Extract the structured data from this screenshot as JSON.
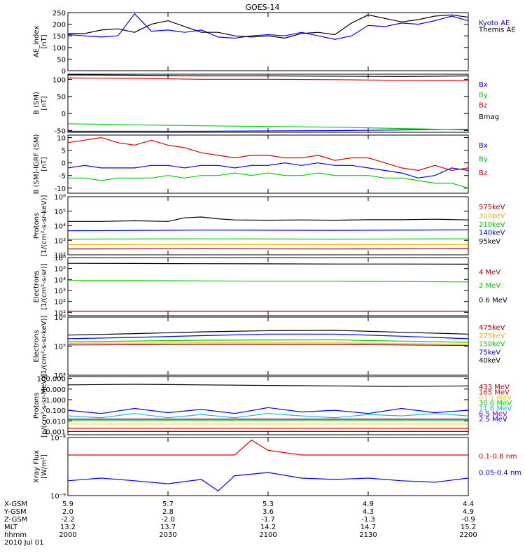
{
  "title": "GOES-14",
  "chart_data": [
    {
      "type": "line",
      "ylabel": [
        "AE_index",
        "[nT]"
      ],
      "scale": "linear",
      "ylim": [
        0,
        250
      ],
      "ticks": [
        0,
        50,
        100,
        150,
        200,
        250
      ],
      "tick_labels": [
        "0",
        "50",
        "100",
        "150",
        "200",
        "250"
      ],
      "series": [
        {
          "name": "Kyoto AE",
          "color": "#0000ff",
          "label_at": 0.0,
          "x": [
            0,
            5,
            10,
            15,
            20,
            25,
            30,
            35,
            40,
            45,
            50,
            55,
            60,
            65,
            70,
            75,
            80,
            85,
            90,
            95,
            100,
            105,
            110,
            115,
            120
          ],
          "y": [
            155,
            150,
            145,
            150,
            245,
            170,
            175,
            165,
            175,
            145,
            140,
            150,
            155,
            150,
            165,
            150,
            135,
            150,
            195,
            190,
            205,
            200,
            215,
            235,
            215
          ]
        },
        {
          "name": "Themis AE",
          "color": "#000000",
          "label_at": 0.16,
          "x": [
            0,
            5,
            10,
            15,
            20,
            25,
            30,
            35,
            40,
            45,
            50,
            55,
            60,
            65,
            70,
            75,
            80,
            85,
            90,
            95,
            100,
            105,
            110,
            115,
            120
          ],
          "y": [
            160,
            160,
            175,
            180,
            165,
            200,
            215,
            190,
            165,
            165,
            150,
            145,
            150,
            140,
            160,
            165,
            155,
            205,
            240,
            225,
            210,
            220,
            235,
            240,
            230
          ]
        }
      ]
    },
    {
      "type": "line",
      "ylabel": [
        "B (SM)",
        "[nT]"
      ],
      "scale": "linear",
      "ylim": [
        -55,
        115
      ],
      "ticks": [
        -50,
        0,
        50,
        100
      ],
      "tick_labels": [
        "-50",
        "0",
        "50",
        "100"
      ],
      "series": [
        {
          "name": "Bx",
          "color": "#0000ff",
          "label_at": 0.0,
          "x": [
            0,
            20,
            40,
            60,
            80,
            100,
            120
          ],
          "y": [
            -52,
            -52,
            -52,
            -51,
            -50,
            -48,
            -46
          ]
        },
        {
          "name": "By",
          "color": "#00d000",
          "label_at": 0.25,
          "x": [
            0,
            20,
            40,
            60,
            80,
            100,
            120
          ],
          "y": [
            -30,
            -33,
            -36,
            -38,
            -40,
            -44,
            -48
          ]
        },
        {
          "name": "Bz",
          "color": "#e00000",
          "label_at": 0.5,
          "x": [
            0,
            20,
            40,
            60,
            80,
            100,
            120
          ],
          "y": [
            104,
            103,
            100,
            100,
            99,
            97,
            96
          ]
        },
        {
          "name": "Bmag",
          "color": "#000000",
          "label_at": 0.78,
          "x": [
            0,
            20,
            40,
            60,
            80,
            100,
            120
          ],
          "y": [
            113,
            112,
            110,
            110,
            109,
            108,
            110
          ]
        }
      ]
    },
    {
      "type": "line",
      "ylabel": [
        "B (SM)-IGRF (SM)",
        "[nT]"
      ],
      "scale": "linear",
      "ylim": [
        -12,
        11
      ],
      "ticks": [
        -10,
        -5,
        0,
        5,
        10
      ],
      "tick_labels": [
        "-10",
        "-5",
        "0",
        "5",
        "10"
      ],
      "series": [
        {
          "name": "Bx",
          "color": "#0000ff",
          "label_at": 0.0,
          "x": [
            0,
            5,
            10,
            15,
            20,
            25,
            30,
            35,
            40,
            45,
            50,
            55,
            60,
            65,
            70,
            75,
            80,
            85,
            90,
            95,
            100,
            105,
            110,
            115,
            120
          ],
          "y": [
            -2,
            -1,
            -2,
            -2,
            -2,
            -1,
            -1,
            -2,
            -1,
            -1,
            -2,
            -1,
            -1,
            0,
            -1,
            0,
            -1,
            -1,
            -2,
            -3,
            -4,
            -6,
            -5,
            -2,
            -3
          ]
        },
        {
          "name": "By",
          "color": "#00d000",
          "label_at": 0.33,
          "x": [
            0,
            5,
            10,
            15,
            20,
            25,
            30,
            35,
            40,
            45,
            50,
            55,
            60,
            65,
            70,
            75,
            80,
            85,
            90,
            95,
            100,
            105,
            110,
            115,
            120
          ],
          "y": [
            -6,
            -6,
            -7,
            -6,
            -6,
            -6,
            -5,
            -6,
            -5,
            -5,
            -4,
            -5,
            -4,
            -5,
            -5,
            -4,
            -5,
            -5,
            -5,
            -6,
            -6,
            -7,
            -8,
            -8,
            -10
          ]
        },
        {
          "name": "Bz",
          "color": "#e00000",
          "label_at": 0.66,
          "x": [
            0,
            5,
            10,
            15,
            20,
            25,
            30,
            35,
            40,
            45,
            50,
            55,
            60,
            65,
            70,
            75,
            80,
            85,
            90,
            95,
            100,
            105,
            110,
            115,
            120
          ],
          "y": [
            8,
            9,
            10,
            8,
            7,
            9,
            7,
            6,
            4,
            3,
            2,
            3,
            3,
            2,
            2,
            3,
            1,
            2,
            2,
            0,
            -2,
            -3,
            -1,
            -3,
            -2
          ]
        }
      ]
    },
    {
      "type": "line",
      "ylabel": [
        "Protons",
        "[1/(cm²-s-sr-keV)]"
      ],
      "scale": "log",
      "ylim": [
        100,
        1000000
      ],
      "ticks": [
        100,
        1000,
        10000,
        100000,
        1000000
      ],
      "tick_labels": [
        "10²",
        "10³",
        "10⁴",
        "10⁵",
        "10⁶"
      ],
      "series": [
        {
          "name": "575keV",
          "color": "#a00000",
          "label_at": 0.0,
          "x": [
            0,
            40,
            80,
            120
          ],
          "y": [
            250,
            260,
            250,
            260
          ]
        },
        {
          "name": "300keV",
          "color": "#ffb000",
          "label_at": 0.21,
          "x": [
            0,
            40,
            80,
            120
          ],
          "y": [
            500,
            520,
            500,
            510
          ]
        },
        {
          "name": "210keV",
          "color": "#00d000",
          "label_at": 0.42,
          "x": [
            0,
            40,
            80,
            120
          ],
          "y": [
            1200,
            1250,
            1200,
            1250
          ]
        },
        {
          "name": "140keV",
          "color": "#0000ff",
          "label_at": 0.62,
          "x": [
            0,
            40,
            80,
            120
          ],
          "y": [
            4500,
            5000,
            4800,
            5200
          ]
        },
        {
          "name": "95keV",
          "color": "#000000",
          "label_at": 0.83,
          "x": [
            0,
            10,
            20,
            30,
            35,
            40,
            45,
            50,
            60,
            70,
            80,
            90,
            100,
            110,
            120
          ],
          "y": [
            20000,
            20000,
            22000,
            20000,
            35000,
            40000,
            30000,
            25000,
            24000,
            25000,
            24000,
            26000,
            26000,
            28000,
            25000
          ]
        }
      ]
    },
    {
      "type": "line",
      "ylabel": [
        "Electrons",
        "[1/(cm²-s-sr)]"
      ],
      "scale": "log",
      "ylim": [
        5,
        1000000
      ],
      "ticks": [
        10,
        100,
        1000,
        10000,
        100000,
        1000000
      ],
      "tick_labels": [
        "10¹",
        "10²",
        "10³",
        "10⁴",
        "10⁵",
        "10⁶"
      ],
      "series": [
        {
          "name": "4 MeV",
          "color": "#a00000",
          "label_at": 0.1,
          "x": [
            0,
            20,
            40,
            60,
            80,
            100,
            120
          ],
          "y": [
            13,
            13,
            13,
            13,
            13,
            13,
            13
          ]
        },
        {
          "name": "2 MeV",
          "color": "#00d000",
          "label_at": 0.42,
          "x": [
            0,
            20,
            40,
            60,
            80,
            100,
            120
          ],
          "y": [
            8000,
            8000,
            7500,
            7000,
            7000,
            6500,
            6000
          ]
        },
        {
          "name": "0.6 MeV",
          "color": "#000000",
          "label_at": 0.78,
          "x": [
            0,
            20,
            40,
            60,
            80,
            100,
            120
          ],
          "y": [
            300000,
            290000,
            280000,
            270000,
            260000,
            260000,
            250000
          ]
        }
      ]
    },
    {
      "type": "line",
      "ylabel": [
        "Electrons",
        "[1/(cm²-s-sr-keV)]"
      ],
      "scale": "log",
      "ylim": [
        10000,
        1000000
      ],
      "ticks": [
        10000,
        100000,
        1000000
      ],
      "tick_labels": [
        "10⁴",
        "10⁵",
        "10⁶"
      ],
      "series": [
        {
          "name": "475keV",
          "color": "#a00000",
          "label_at": 0.0,
          "x": [
            0,
            40,
            80,
            120
          ],
          "y": [
            110000,
            115000,
            115000,
            105000
          ]
        },
        {
          "name": "275keV",
          "color": "#ffb000",
          "label_at": 0.2,
          "x": [
            0,
            40,
            80,
            120
          ],
          "y": [
            125000,
            130000,
            130000,
            115000
          ]
        },
        {
          "name": "150keV",
          "color": "#00d000",
          "label_at": 0.4,
          "x": [
            0,
            40,
            80,
            120
          ],
          "y": [
            140000,
            160000,
            165000,
            135000
          ]
        },
        {
          "name": "75keV",
          "color": "#0000ff",
          "label_at": 0.6,
          "x": [
            0,
            20,
            40,
            60,
            80,
            100,
            120
          ],
          "y": [
            180000,
            200000,
            230000,
            260000,
            260000,
            220000,
            180000
          ]
        },
        {
          "name": "40keV",
          "color": "#000000",
          "label_at": 0.8,
          "x": [
            0,
            20,
            40,
            60,
            80,
            100,
            120
          ],
          "y": [
            240000,
            270000,
            310000,
            340000,
            350000,
            300000,
            260000
          ]
        }
      ]
    },
    {
      "type": "line",
      "ylabel": [
        "Protons",
        "[p/(cm²-s-sr-MeV)]"
      ],
      "scale": "log",
      "ylim": [
        0.0005,
        150
      ],
      "ticks": [
        0.001,
        0.01,
        0.1,
        1,
        10,
        100
      ],
      "tick_labels": [
        "0.001",
        "0.010",
        "0.100",
        "1.000",
        "10.000",
        "100.000"
      ],
      "series": [
        {
          "name": "433 MeV",
          "color": "#a00000",
          "label_at": 0.0,
          "x": [
            0,
            30,
            60,
            90,
            120
          ],
          "y": [
            0.001,
            0.001,
            0.001,
            0.001,
            0.001
          ]
        },
        {
          "name": "165 MeV",
          "color": "#e00000",
          "label_at": 0.13,
          "x": [
            0,
            30,
            60,
            90,
            120
          ],
          "y": [
            0.002,
            0.002,
            0.002,
            0.002,
            0.002
          ]
        },
        {
          "name": "63.1 MeV",
          "color": "#ffd000",
          "label_at": 0.26,
          "x": [
            0,
            30,
            60,
            90,
            120
          ],
          "y": [
            0.005,
            0.005,
            0.005,
            0.005,
            0.005
          ]
        },
        {
          "name": "30.6 MeV",
          "color": "#00d000",
          "label_at": 0.39,
          "x": [
            0,
            30,
            60,
            90,
            120
          ],
          "y": [
            0.012,
            0.012,
            0.012,
            0.012,
            0.012
          ]
        },
        {
          "name": "11.6 MeV",
          "color": "#00c0e0",
          "label_at": 0.52,
          "x": [
            0,
            10,
            20,
            30,
            40,
            50,
            60,
            70,
            80,
            90,
            100,
            110,
            120
          ],
          "y": [
            0.03,
            0.02,
            0.05,
            0.02,
            0.04,
            0.02,
            0.05,
            0.03,
            0.02,
            0.04,
            0.03,
            0.05,
            0.03
          ]
        },
        {
          "name": "6.5 MeV",
          "color": "#a000a0",
          "label_at": 0.65,
          "x": [
            0,
            30,
            60,
            90,
            120
          ],
          "y": [
            0.015,
            0.015,
            0.015,
            0.015,
            0.015
          ]
        },
        {
          "name": "2.5 MeV",
          "color": "#0000ff",
          "label_at": 0.78,
          "x": [
            0,
            10,
            20,
            30,
            40,
            50,
            60,
            70,
            80,
            90,
            100,
            110,
            120
          ],
          "y": [
            0.1,
            0.05,
            0.15,
            0.06,
            0.12,
            0.05,
            0.18,
            0.07,
            0.1,
            0.05,
            0.15,
            0.06,
            0.1
          ]
        },
        {
          "name": "",
          "color": "#000000",
          "label_at": 1.0,
          "x": [
            0,
            20,
            40,
            60,
            80,
            100,
            120
          ],
          "y": [
            25,
            28,
            25,
            22,
            20,
            18,
            20
          ]
        }
      ]
    },
    {
      "type": "line",
      "ylabel": [
        "Xray Flux",
        "[W/m²]"
      ],
      "scale": "log",
      "ylim": [
        1e-09,
        1e-08
      ],
      "ticks": [
        1e-09,
        1e-08
      ],
      "tick_labels": [
        "10⁻⁹",
        "10⁻⁸"
      ],
      "axis_top_label": "10⁻⁸",
      "series": [
        {
          "name": "0.1-0.8 nm",
          "color": "#e00000",
          "label_at": 0.2,
          "x": [
            0,
            10,
            20,
            30,
            40,
            50,
            55,
            60,
            70,
            80,
            90,
            100,
            110,
            120
          ],
          "y": [
            5,
            5,
            5,
            5,
            5,
            5,
            9,
            6,
            5,
            5,
            5,
            5,
            5,
            5
          ]
        },
        {
          "name": "0.05-0.4 nm",
          "color": "#0000ff",
          "label_at": 0.6,
          "x": [
            0,
            10,
            20,
            30,
            40,
            45,
            50,
            60,
            70,
            80,
            90,
            100,
            110,
            120
          ],
          "y": [
            1.8,
            2,
            1.8,
            1.6,
            1.9,
            1.2,
            2.2,
            2.5,
            2,
            1.9,
            2,
            1.8,
            1.7,
            2
          ]
        }
      ]
    }
  ],
  "time_axis": {
    "x_range": [
      0,
      120
    ],
    "tick_minutes": [
      0,
      30,
      60,
      90,
      120
    ],
    "row_labels": [
      "X-GSM",
      "Y-GSM",
      "Z-GSM",
      "MLT",
      "hhmm",
      "2010 Jul 01"
    ],
    "rows": [
      [
        "5.9",
        "5.7",
        "5.3",
        "4.9",
        "4.4"
      ],
      [
        "2.0",
        "2.8",
        "3.6",
        "4.3",
        "4.9"
      ],
      [
        "-2.2",
        "-2.0",
        "-1.7",
        "-1.3",
        "-0.9"
      ],
      [
        "13.2",
        "13.7",
        "14.2",
        "14.7",
        "15.2"
      ],
      [
        "2000",
        "2030",
        "2100",
        "2130",
        "2200"
      ]
    ]
  }
}
